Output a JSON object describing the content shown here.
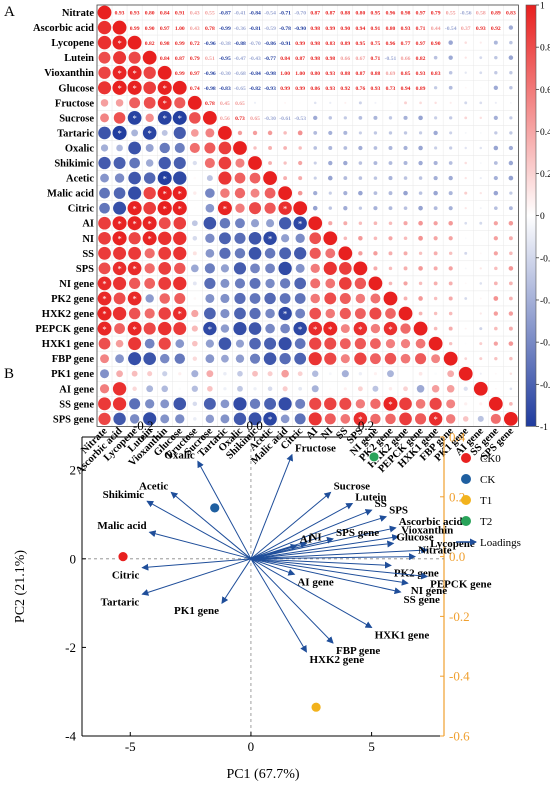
{
  "panels": {
    "a": "A",
    "b": "B"
  },
  "chart_data": [
    {
      "type": "heatmap",
      "variables": [
        "Nitrate",
        "Ascorbic acid",
        "Lycopene",
        "Lutein",
        "Vioxanthin",
        "Glucose",
        "Fructose",
        "Sucrose",
        "Tartaric",
        "Oxalic",
        "Shikimic",
        "Acetic",
        "Malic acid",
        "Citric",
        "AI",
        "NI",
        "SS",
        "SPS",
        "NI gene",
        "PK2 gene",
        "HXK2 gene",
        "PEPCK gene",
        "HXK1 gene",
        "FBP gene",
        "PK1 gene",
        "AI gene",
        "SS gene",
        "SPS gene"
      ],
      "group_A": [
        "Nitrate",
        "Ascorbic acid",
        "Lycopene",
        "Lutein",
        "Vioxanthin",
        "Glucose",
        "Fructose",
        "Sucrose"
      ],
      "group_B": [
        "Tartaric",
        "Oxalic",
        "Shikimic",
        "Acetic",
        "Malic acid",
        "Citric"
      ],
      "group_C": [
        "AI",
        "NI",
        "SS",
        "SPS",
        "NI gene",
        "PK2 gene",
        "HXK2 gene",
        "PEPCK gene",
        "HXK1 gene",
        "FBP gene",
        "PK1 gene",
        "AI gene",
        "SS gene",
        "SPS gene"
      ],
      "printed_upper_values": {
        "Nitrate": [
          "0.93",
          "0.93",
          "0.80",
          "0.84",
          "0.91",
          "0.43",
          "0.55",
          "-0.87",
          "-0.41",
          "-0.84",
          "-0.54",
          "-0.71",
          "-0.70",
          "0.87",
          "0.87",
          "0.88",
          "0.80",
          "0.95",
          "0.96",
          "0.98",
          "0.97",
          "0.79",
          "0.55",
          "-0.56",
          "0.58",
          "0.89",
          "0.83"
        ],
        "Ascorbic acid": [
          "0.99",
          "0.90",
          "0.97",
          "1.00",
          "0.43",
          "0.78",
          "-0.99",
          "-0.36",
          "-0.81",
          "-0.59",
          "-0.78",
          "-0.90",
          "0.98",
          "0.99",
          "0.90",
          "0.94",
          "0.91",
          "0.80",
          "0.93",
          "0.71",
          "0.44",
          "-0.54",
          "0.37",
          "0.93",
          "0.92"
        ],
        "Lycopene": [
          "0.82",
          "0.98",
          "0.99",
          "0.72",
          "-0.96",
          "-0.38",
          "-0.88",
          "-0.70",
          "-0.86",
          "-0.91",
          "0.99",
          "0.98",
          "0.83",
          "0.89",
          "0.95",
          "0.75",
          "0.96",
          "0.77",
          "0.97",
          "0.90"
        ],
        "Lutein": [
          "0.84",
          "0.87",
          "0.79",
          "0.51",
          "-0.95",
          "-0.47",
          "-0.43",
          "-0.77",
          "0.84",
          "0.87",
          "0.98",
          "0.98",
          "0.66",
          "0.67",
          "0.71",
          "-0.51",
          "0.66",
          "0.82"
        ],
        "Vioxanthin": [
          "0.99",
          "0.97",
          "-0.96",
          "-0.30",
          "-0.68",
          "-0.84",
          "-0.98",
          "1.00",
          "1.00",
          "0.80",
          "0.93",
          "0.88",
          "0.87",
          "0.88",
          "0.69",
          "0.85",
          "0.93",
          "0.83"
        ],
        "Glucose": [
          "0.74",
          "-0.98",
          "-0.83",
          "-0.65",
          "-0.82",
          "-0.93",
          "0.99",
          "0.99",
          "0.86",
          "0.93",
          "0.92",
          "0.76",
          "0.93",
          "0.73",
          "0.94",
          "0.89"
        ],
        "Fructose": [
          "0.78",
          "0.45",
          "0.65"
        ],
        "Sucrose": [
          "0.56",
          "0.73",
          "0.65",
          "-0.30",
          "-0.61",
          "-0.53"
        ]
      },
      "zero_center": "0",
      "colorbar_ticks": [
        1,
        0.8,
        0.6,
        0.4,
        0.2,
        0,
        -0.2,
        -0.4,
        -0.6,
        -0.8,
        -1
      ],
      "colorbar_labels": [
        "1",
        "0.8",
        "0.6",
        "0.4",
        "0.2",
        "0",
        "-0.2",
        "-0.4",
        "-0.6",
        "-0.8",
        "-1"
      ],
      "colors": {
        "positive": "#e8201f",
        "negative": "#1f3b9e",
        "neutral": "#ffffff"
      }
    },
    {
      "type": "scatter",
      "xlabel": "PC1 (67.7%)",
      "ylabel": "PC2 (21.1%)",
      "xlim": [
        -7,
        8
      ],
      "ylim": [
        -4,
        2.75
      ],
      "x_ticks": [
        -5,
        0,
        5
      ],
      "x_tick_labels": [
        "-5",
        "0",
        "5"
      ],
      "y_ticks": [
        2,
        0,
        -2,
        -4
      ],
      "y_tick_labels": [
        "2",
        "0",
        "-2",
        "-4"
      ],
      "loading_xlim": [
        -0.31,
        0.34
      ],
      "loading_ylim": [
        -0.6,
        0.4
      ],
      "loading_x_ticks": [
        -0.2,
        0,
        0.2
      ],
      "loading_x_tick_labels": [
        "-0.2",
        "0.0",
        "0.2"
      ],
      "loading_y_ticks": [
        0.4,
        0.2,
        0,
        -0.2,
        -0.4,
        -0.6
      ],
      "loading_y_tick_labels": [
        "0.4",
        "0.2",
        "0.0",
        "-0.2",
        "-0.4",
        "-0.6"
      ],
      "samples": [
        {
          "name": "CK0",
          "x": -5.3,
          "y": 0.05,
          "color": "#e8201f"
        },
        {
          "name": "CK",
          "x": -1.5,
          "y": 1.15,
          "color": "#1f5fa0"
        },
        {
          "name": "T1",
          "x": 2.7,
          "y": -3.35,
          "color": "#f2b21c"
        },
        {
          "name": "T2",
          "x": 5.1,
          "y": 2.3,
          "color": "#29a35a"
        }
      ],
      "loadings_label": "Loadings",
      "loadings": [
        {
          "name": "Fructose",
          "x": 1.7,
          "y": 2.35
        },
        {
          "name": "Oxalic",
          "x": -2.2,
          "y": 2.2
        },
        {
          "name": "Acetic",
          "x": -3.3,
          "y": 1.5
        },
        {
          "name": "Shikimic",
          "x": -4.3,
          "y": 1.3
        },
        {
          "name": "Malic acid",
          "x": -4.2,
          "y": 0.6
        },
        {
          "name": "Citric",
          "x": -4.5,
          "y": -0.2
        },
        {
          "name": "Tartaric",
          "x": -4.5,
          "y": -0.8
        },
        {
          "name": "PK1 gene",
          "x": -1.2,
          "y": -1.0
        },
        {
          "name": "Sucrose",
          "x": 3.3,
          "y": 1.5
        },
        {
          "name": "Lutein",
          "x": 4.2,
          "y": 1.25
        },
        {
          "name": "SS",
          "x": 5.0,
          "y": 1.1
        },
        {
          "name": "SPS",
          "x": 5.6,
          "y": 0.95
        },
        {
          "name": "Ascorbic acid",
          "x": 6.0,
          "y": 0.7
        },
        {
          "name": "Vioxanthin",
          "x": 6.1,
          "y": 0.5
        },
        {
          "name": "Glucose",
          "x": 5.9,
          "y": 0.35
        },
        {
          "name": "Lycopene",
          "x": 7.3,
          "y": 0.2
        },
        {
          "name": "Nitrate",
          "x": 6.8,
          "y": 0.05
        },
        {
          "name": "SPS gene",
          "x": 3.4,
          "y": 0.45
        },
        {
          "name": "NI",
          "x": 2.3,
          "y": 0.35
        },
        {
          "name": "AI",
          "x": 1.9,
          "y": 0.3
        },
        {
          "name": "PK2 gene",
          "x": 5.8,
          "y": -0.15
        },
        {
          "name": "PEPCK gene",
          "x": 7.3,
          "y": -0.4
        },
        {
          "name": "NI gene",
          "x": 6.5,
          "y": -0.55
        },
        {
          "name": "SS gene",
          "x": 6.2,
          "y": -0.75
        },
        {
          "name": "AI gene",
          "x": 1.8,
          "y": -0.35
        },
        {
          "name": "HXK1 gene",
          "x": 5.0,
          "y": -1.55
        },
        {
          "name": "FBP gene",
          "x": 3.4,
          "y": -1.9
        },
        {
          "name": "HXK2 gene",
          "x": 2.3,
          "y": -2.1
        }
      ]
    }
  ]
}
